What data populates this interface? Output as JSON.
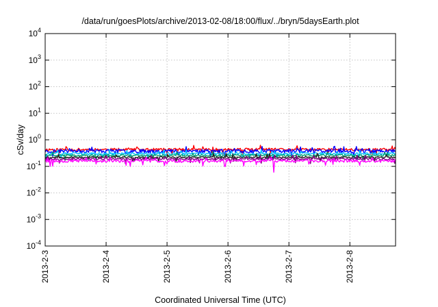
{
  "chart_data": {
    "type": "line",
    "title": "/data/run/goesPlots/archive/2013-02-08/18:00/flux/../bryn/5daysEarth.plot",
    "xlabel": "Coordinated Universal Time (UTC)",
    "ylabel": "cSv/day",
    "yscale": "log",
    "ylim": [
      0.0001,
      10000
    ],
    "y_ticks": [
      {
        "base": "10",
        "exp": "-4",
        "value": 0.0001
      },
      {
        "base": "10",
        "exp": "-3",
        "value": 0.001
      },
      {
        "base": "10",
        "exp": "-2",
        "value": 0.01
      },
      {
        "base": "10",
        "exp": "-1",
        "value": 0.1
      },
      {
        "base": "10",
        "exp": "0",
        "value": 1
      },
      {
        "base": "10",
        "exp": "1",
        "value": 10
      },
      {
        "base": "10",
        "exp": "2",
        "value": 100
      },
      {
        "base": "10",
        "exp": "3",
        "value": 1000
      },
      {
        "base": "10",
        "exp": "4",
        "value": 10000
      }
    ],
    "xlim": [
      "2013-02-03 00:00",
      "2013-02-08 18:00"
    ],
    "x_ticks": [
      "2013-2-3",
      "2013-2-4",
      "2013-2-5",
      "2013-2-6",
      "2013-2-7",
      "2013-2-8"
    ],
    "grid": true,
    "series": [
      {
        "color": "#ff0000",
        "mean": 0.43,
        "jitter": 0.12,
        "seed": 11,
        "spikes": []
      },
      {
        "color": "#0000ff",
        "mean": 0.38,
        "jitter": 0.16,
        "seed": 23,
        "spikes": []
      },
      {
        "color": "#00c0ff",
        "mean": 0.3,
        "jitter": 0.1,
        "seed": 37,
        "spikes": []
      },
      {
        "color": "#00a070",
        "mean": 0.26,
        "jitter": 0.08,
        "seed": 41,
        "spikes": []
      },
      {
        "color": "#202020",
        "mean": 0.22,
        "jitter": 0.07,
        "seed": 53,
        "spikes": []
      },
      {
        "color": "#800080",
        "mean": 0.19,
        "jitter": 0.07,
        "seed": 67,
        "spikes": []
      },
      {
        "color": "#ff00ff",
        "mean": 0.16,
        "jitter": 0.12,
        "seed": 79,
        "spikes": [
          {
            "day": 3.75,
            "value": 0.06
          },
          {
            "day": 2.95,
            "value": 0.1
          },
          {
            "day": 1.4,
            "value": 0.1
          }
        ]
      }
    ]
  }
}
